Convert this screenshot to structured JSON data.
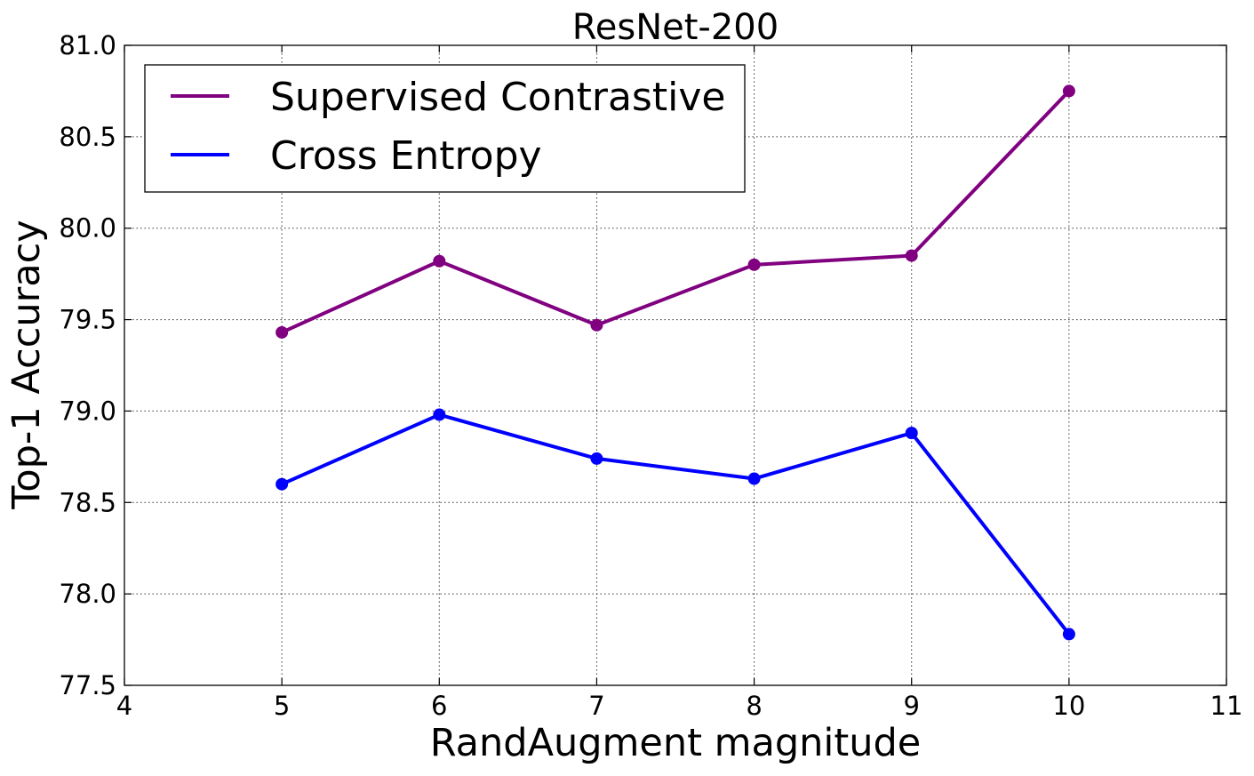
{
  "chart_data": {
    "type": "line",
    "title": "ResNet-200",
    "xlabel": "RandAugment magnitude",
    "ylabel": "Top-1 Accuracy",
    "xlim": [
      4,
      11
    ],
    "ylim": [
      77.5,
      81.0
    ],
    "xticks": [
      4,
      5,
      6,
      7,
      8,
      9,
      10,
      11
    ],
    "yticks": [
      77.5,
      78.0,
      78.5,
      79.0,
      79.5,
      80.0,
      80.5,
      81.0
    ],
    "xtick_labels": [
      "4",
      "5",
      "6",
      "7",
      "8",
      "9",
      "10",
      "11"
    ],
    "ytick_labels": [
      "77.5",
      "78.0",
      "78.5",
      "79.0",
      "79.5",
      "80.0",
      "80.5",
      "81.0"
    ],
    "grid": true,
    "legend_position": "top-left",
    "x": [
      5,
      6,
      7,
      8,
      9,
      10
    ],
    "series": [
      {
        "name": "Supervised Contrastive",
        "color": "#800080",
        "values": [
          79.43,
          79.82,
          79.47,
          79.8,
          79.85,
          80.75
        ]
      },
      {
        "name": "Cross Entropy",
        "color": "#0000ff",
        "values": [
          78.6,
          78.98,
          78.74,
          78.63,
          78.88,
          77.78
        ]
      }
    ]
  }
}
